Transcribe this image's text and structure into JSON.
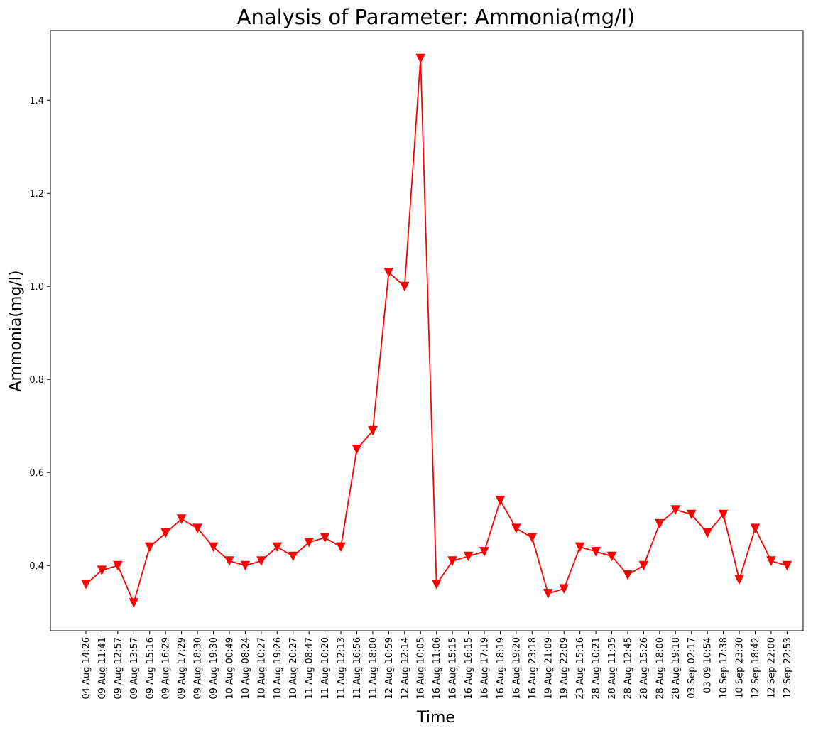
{
  "chart_data": {
    "type": "line",
    "title": "Analysis of Parameter: Ammonia(mg/l)",
    "xlabel": "Time",
    "ylabel": "Ammonia(mg/l)",
    "ylim": [
      0.26,
      1.55
    ],
    "yticks": [
      "0.4",
      "0.6",
      "0.8",
      "1.0",
      "1.2",
      "1.4"
    ],
    "grid": false,
    "marker": "triangle-down",
    "color": "#ff0000",
    "categories": [
      "04 Aug 14:26",
      "09 Aug 11:41",
      "09 Aug 12:57",
      "09 Aug 13:57",
      "09 Aug 15:16",
      "09 Aug 16:29",
      "09 Aug 17:29",
      "09 Aug 18:30",
      "09 Aug 19:30",
      "10 Aug 00:49",
      "10 Aug 08:24",
      "10 Aug 10:27",
      "10 Aug 19:26",
      "10 Aug 20:27",
      "11 Aug 08:47",
      "11 Aug 10:20",
      "11 Aug 12:13",
      "11 Aug 16:56",
      "11 Aug 18:00",
      "12 Aug 10:59",
      "12 Aug 12:14",
      "16 Aug 10:05",
      "16 Aug 11:06",
      "16 Aug 15:15",
      "16 Aug 16:15",
      "16 Aug 17:19",
      "16 Aug 18:19",
      "16 Aug 19:20",
      "16 Aug 23:18",
      "19 Aug 21:09",
      "19 Aug 22:09",
      "23 Aug 15:16",
      "28 Aug 10:21",
      "28 Aug 11:35",
      "28 Aug 12:45",
      "28 Aug 15:26",
      "28 Aug 18:00",
      "28 Aug 19:18",
      "03 Sep 02:17",
      "03 09 10:54",
      "10 Sep 17:38",
      "10 Sep 23:30",
      "12 Sep 18:42",
      "12 Sep 22:00",
      "12 Sep 22:53"
    ],
    "series": [
      {
        "values": [
          0.36,
          0.39,
          0.4,
          0.32,
          0.44,
          0.47,
          0.5,
          0.48,
          0.44,
          0.41,
          0.4,
          0.41,
          0.44,
          0.42,
          0.45,
          0.46,
          0.44,
          0.65,
          0.69,
          1.03,
          1.0,
          1.49,
          0.36,
          0.41,
          0.42,
          0.43,
          0.54,
          0.48,
          0.46,
          0.34,
          0.35,
          0.44,
          0.43,
          0.42,
          0.38,
          0.4,
          0.49,
          0.52,
          0.51,
          0.47,
          0.51,
          0.37,
          0.48,
          0.41,
          0.4
        ]
      }
    ]
  }
}
